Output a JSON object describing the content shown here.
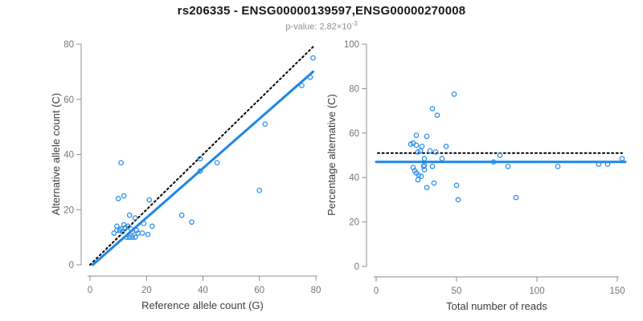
{
  "title": "rs206335 - ENSG00000139597,ENSG00000270008",
  "subtitle": {
    "text": "p-value: 2.82×10",
    "exponent": "-3"
  },
  "colors": {
    "point": "#2E8FE9",
    "fit_line": "#1E86E5",
    "reference_line": "#000000",
    "axis_line": "#8c8c8c",
    "tick_label": "#757575",
    "axis_title": "#3c3c3c",
    "title": "#1a1a1a",
    "subtitle": "#8f8f8f"
  },
  "chart_data": [
    {
      "type": "scatter",
      "name": "allele-count-scatter",
      "xlabel": "Reference allele count (G)",
      "ylabel": "Alternative allele count (C)",
      "xlim": [
        0,
        80
      ],
      "ylim": [
        0,
        80
      ],
      "xticks": [
        0,
        20,
        40,
        60,
        80
      ],
      "yticks": [
        0,
        20,
        40,
        60,
        80
      ],
      "grid": false,
      "legend": null,
      "points": [
        [
          11,
          37
        ],
        [
          10,
          24
        ],
        [
          12,
          25
        ],
        [
          21,
          23.5
        ],
        [
          14,
          18
        ],
        [
          16,
          17
        ],
        [
          19,
          15
        ],
        [
          22,
          14
        ],
        [
          32.5,
          18
        ],
        [
          36,
          15.5
        ],
        [
          8.5,
          11.5
        ],
        [
          9.5,
          12.5
        ],
        [
          9.5,
          14
        ],
        [
          10.5,
          12.5
        ],
        [
          11,
          13
        ],
        [
          11.5,
          12
        ],
        [
          12,
          14.5
        ],
        [
          12.5,
          13.5
        ],
        [
          13.5,
          14
        ],
        [
          14.5,
          13
        ],
        [
          15,
          12
        ],
        [
          16.5,
          12.5
        ],
        [
          17,
          11.5
        ],
        [
          18.5,
          11.5
        ],
        [
          20.5,
          11
        ],
        [
          13,
          10
        ],
        [
          14,
          10
        ],
        [
          15,
          10
        ],
        [
          16,
          10
        ],
        [
          39,
          38.5
        ],
        [
          39,
          34
        ],
        [
          45,
          37
        ],
        [
          62,
          51
        ],
        [
          60,
          27
        ],
        [
          75,
          65
        ],
        [
          78,
          68
        ],
        [
          79,
          75
        ]
      ],
      "lines": [
        {
          "name": "identity-line",
          "style": "dotted",
          "color": "#000000",
          "points": [
            [
              0,
              0
            ],
            [
              79,
              79
            ]
          ]
        },
        {
          "name": "regression-line",
          "style": "solid",
          "color": "#1E86E5",
          "points": [
            [
              1,
              0
            ],
            [
              79,
              70
            ]
          ]
        }
      ]
    },
    {
      "type": "scatter",
      "name": "percentage-scatter",
      "xlabel": "Total number of reads",
      "ylabel": "Percentage alternative (C)",
      "xlim": [
        0,
        155
      ],
      "ylim": [
        0,
        100
      ],
      "xticks": [
        0,
        50,
        100,
        150
      ],
      "yticks": [
        0,
        20,
        40,
        60,
        80,
        100
      ],
      "grid": false,
      "legend": null,
      "points": [
        [
          48.5,
          77.5
        ],
        [
          35,
          71
        ],
        [
          38,
          68
        ],
        [
          25,
          59
        ],
        [
          31.5,
          58.5
        ],
        [
          23,
          55.5
        ],
        [
          21.5,
          55
        ],
        [
          25,
          54.5
        ],
        [
          28.5,
          54
        ],
        [
          27.5,
          52
        ],
        [
          26,
          51.5
        ],
        [
          43.5,
          54
        ],
        [
          33.5,
          52
        ],
        [
          37,
          51.5
        ],
        [
          30,
          48.5
        ],
        [
          41,
          48.5
        ],
        [
          77,
          50
        ],
        [
          73,
          47
        ],
        [
          82,
          45
        ],
        [
          113,
          45
        ],
        [
          138.5,
          46
        ],
        [
          144,
          46
        ],
        [
          153,
          48.5
        ],
        [
          30,
          45.5
        ],
        [
          23,
          44.5
        ],
        [
          35,
          45
        ],
        [
          29.5,
          45
        ],
        [
          30,
          43.5
        ],
        [
          24,
          43
        ],
        [
          25,
          42
        ],
        [
          26.5,
          41
        ],
        [
          28,
          40.5
        ],
        [
          26,
          39
        ],
        [
          31.5,
          35.5
        ],
        [
          36,
          37.5
        ],
        [
          50,
          36.5
        ],
        [
          51,
          30
        ],
        [
          87,
          31
        ]
      ],
      "lines": [
        {
          "name": "expected-percentage-line",
          "style": "dotted",
          "color": "#000000",
          "points": [
            [
              1,
              51
            ],
            [
              153,
              51
            ]
          ]
        },
        {
          "name": "fitted-percentage-line",
          "style": "solid",
          "color": "#1E86E5",
          "points": [
            [
              0,
              47
            ],
            [
              155,
              47
            ]
          ]
        }
      ]
    }
  ]
}
